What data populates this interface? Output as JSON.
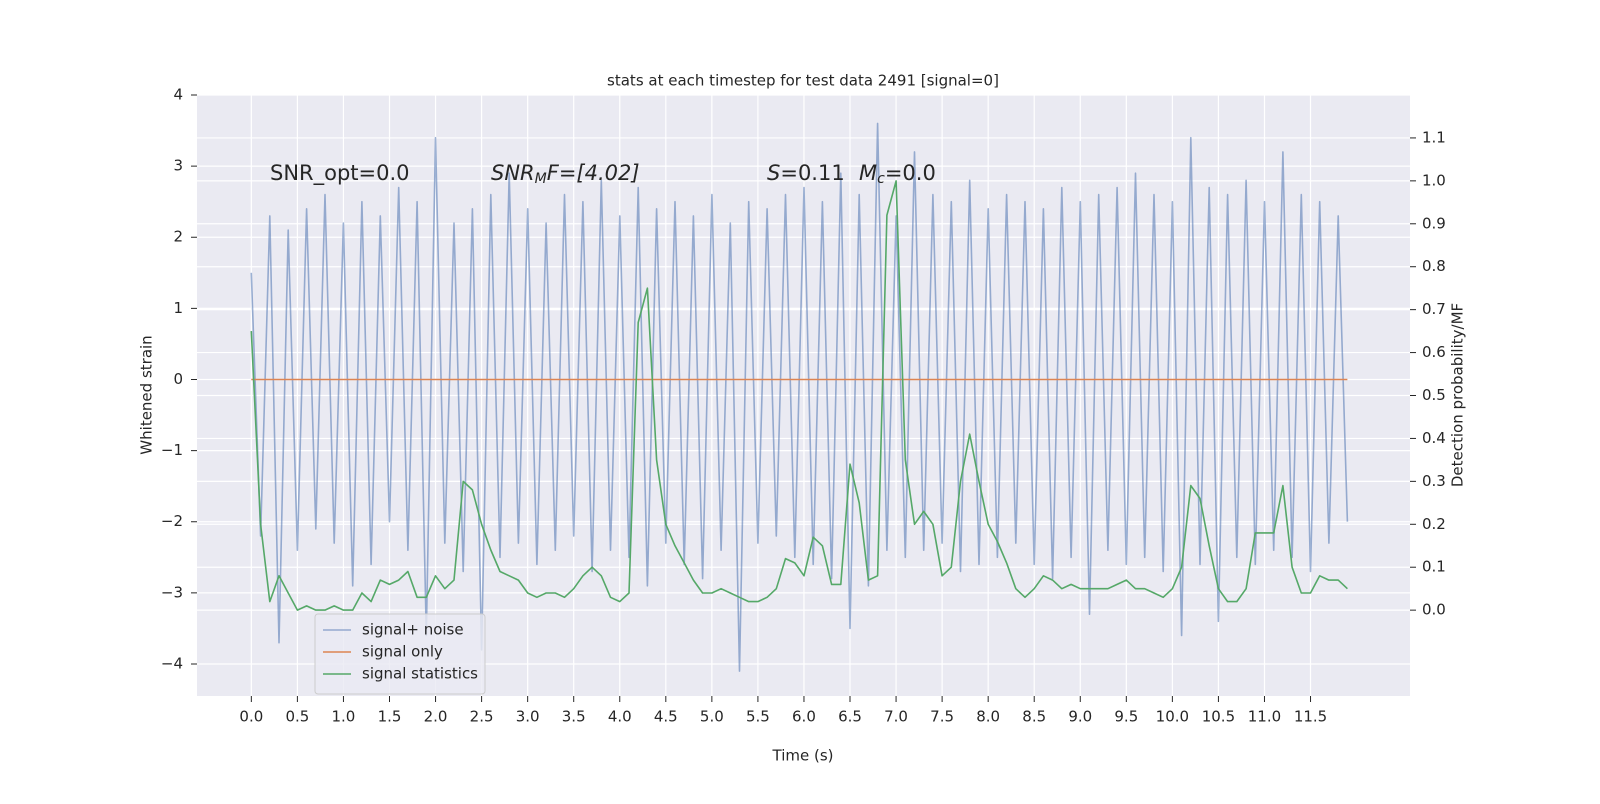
{
  "chart_data": {
    "type": "line",
    "title": "stats at each timestep for test data 2491 [signal=0]",
    "xlabel": "Time (s)",
    "ylabel": "Whitened strain",
    "y2label": "Detection probability/MF",
    "annotations": [
      {
        "text": "SNR_opt=0.0"
      },
      {
        "text": "SNR",
        "sub": "M",
        "rest": "F=[4.02]"
      },
      {
        "text": "S",
        "rest": "=0.11"
      },
      {
        "text": "M",
        "sub": "c",
        "rest": "=0.0"
      }
    ],
    "x": [
      0.0,
      0.1,
      0.2,
      0.3,
      0.4,
      0.5,
      0.6,
      0.7,
      0.8,
      0.9,
      1.0,
      1.1,
      1.2,
      1.3,
      1.4,
      1.5,
      1.6,
      1.7,
      1.8,
      1.9,
      2.0,
      2.1,
      2.2,
      2.3,
      2.4,
      2.5,
      2.6,
      2.7,
      2.8,
      2.9,
      3.0,
      3.1,
      3.2,
      3.3,
      3.4,
      3.5,
      3.6,
      3.7,
      3.8,
      3.9,
      4.0,
      4.1,
      4.2,
      4.3,
      4.4,
      4.5,
      4.6,
      4.7,
      4.8,
      4.9,
      5.0,
      5.1,
      5.2,
      5.3,
      5.4,
      5.5,
      5.6,
      5.7,
      5.8,
      5.9,
      6.0,
      6.1,
      6.2,
      6.3,
      6.4,
      6.5,
      6.6,
      6.7,
      6.8,
      6.9,
      7.0,
      7.1,
      7.2,
      7.3,
      7.4,
      7.5,
      7.6,
      7.7,
      7.8,
      7.9,
      8.0,
      8.1,
      8.2,
      8.3,
      8.4,
      8.5,
      8.6,
      8.7,
      8.8,
      8.9,
      9.0,
      9.1,
      9.2,
      9.3,
      9.4,
      9.5,
      9.6,
      9.7,
      9.8,
      9.9,
      10.0,
      10.1,
      10.2,
      10.3,
      10.4,
      10.5,
      10.6,
      10.7,
      10.8,
      10.9,
      11.0,
      11.1,
      11.2,
      11.3,
      11.4,
      11.5,
      11.6,
      11.7,
      11.8,
      11.9
    ],
    "series": [
      {
        "name": "signal+ noise",
        "color": "#4c72b0",
        "values": [
          1.5,
          -2.2,
          2.3,
          -3.7,
          2.1,
          -2.4,
          2.4,
          -2.1,
          2.6,
          -2.3,
          2.2,
          -2.9,
          2.5,
          -2.6,
          2.3,
          -2.0,
          2.7,
          -2.4,
          2.5,
          -3.6,
          3.4,
          -2.3,
          2.2,
          -2.7,
          2.4,
          -3.8,
          2.6,
          -2.5,
          2.9,
          -2.3,
          2.4,
          -2.6,
          2.2,
          -2.4,
          2.6,
          -2.2,
          2.5,
          -2.7,
          2.8,
          -2.4,
          2.3,
          -2.5,
          2.7,
          -2.9,
          2.4,
          -2.3,
          2.5,
          -2.6,
          2.3,
          -2.8,
          2.6,
          -2.4,
          2.2,
          -4.1,
          2.5,
          -2.3,
          2.4,
          -2.2,
          2.6,
          -2.5,
          2.7,
          -2.6,
          2.5,
          -2.8,
          2.9,
          -3.5,
          2.6,
          -2.9,
          3.6,
          -2.4,
          2.3,
          -2.5,
          3.2,
          -2.4,
          2.6,
          -2.3,
          2.5,
          -2.7,
          2.8,
          -2.6,
          2.4,
          -2.5,
          2.6,
          -2.3,
          2.5,
          -2.6,
          2.4,
          -2.8,
          2.7,
          -2.5,
          2.5,
          -3.3,
          2.6,
          -2.4,
          2.7,
          -2.6,
          2.9,
          -2.5,
          2.6,
          -2.7,
          2.5,
          -3.6,
          3.4,
          -2.6,
          2.7,
          -3.4,
          2.6,
          -2.5,
          2.8,
          -2.6,
          2.5,
          -2.4,
          3.2,
          -2.5,
          2.6,
          -2.7,
          2.5,
          -2.3,
          2.3,
          -2.0
        ]
      },
      {
        "name": "signal only",
        "color": "#dd8452",
        "x": [
          0.0,
          11.9
        ],
        "values": [
          0,
          0
        ]
      },
      {
        "name": "signal statistics",
        "color": "#55a868",
        "axis": "y2",
        "values": [
          0.65,
          0.2,
          0.02,
          0.08,
          0.04,
          0.0,
          0.01,
          0.0,
          0.0,
          0.01,
          0.0,
          0.0,
          0.04,
          0.02,
          0.07,
          0.06,
          0.07,
          0.09,
          0.03,
          0.03,
          0.08,
          0.05,
          0.07,
          0.3,
          0.28,
          0.2,
          0.14,
          0.09,
          0.08,
          0.07,
          0.04,
          0.03,
          0.04,
          0.04,
          0.03,
          0.05,
          0.08,
          0.1,
          0.08,
          0.03,
          0.02,
          0.04,
          0.67,
          0.75,
          0.35,
          0.2,
          0.15,
          0.11,
          0.07,
          0.04,
          0.04,
          0.05,
          0.04,
          0.03,
          0.02,
          0.02,
          0.03,
          0.05,
          0.12,
          0.11,
          0.08,
          0.17,
          0.15,
          0.06,
          0.06,
          0.34,
          0.25,
          0.07,
          0.08,
          0.92,
          1.0,
          0.35,
          0.2,
          0.23,
          0.2,
          0.08,
          0.1,
          0.3,
          0.41,
          0.3,
          0.2,
          0.16,
          0.11,
          0.05,
          0.03,
          0.05,
          0.08,
          0.07,
          0.05,
          0.06,
          0.05,
          0.05,
          0.05,
          0.05,
          0.06,
          0.07,
          0.05,
          0.05,
          0.04,
          0.03,
          0.05,
          0.1,
          0.29,
          0.26,
          0.15,
          0.05,
          0.02,
          0.02,
          0.05,
          0.18,
          0.18,
          0.18,
          0.29,
          0.1,
          0.04,
          0.04,
          0.08,
          0.07,
          0.07,
          0.05
        ]
      }
    ],
    "xlim": [
      -0.59,
      12.58
    ],
    "xticks": [
      {
        "value": 0,
        "label": "0.0"
      },
      0.5,
      {
        "value": 1,
        "label": "1.0"
      },
      1.5,
      {
        "value": 2,
        "label": "2.0"
      },
      2.5,
      {
        "value": 3,
        "label": "3.0"
      },
      3.5,
      {
        "value": 4,
        "label": "4.0"
      },
      4.5,
      {
        "value": 5,
        "label": "5.0"
      },
      5.5,
      {
        "value": 6,
        "label": "6.0"
      },
      6.5,
      {
        "value": 7,
        "label": "7.0"
      },
      7.5,
      {
        "value": 8,
        "label": "8.0"
      },
      8.5,
      {
        "value": 9,
        "label": "9.0"
      },
      9.5,
      {
        "value": 10,
        "label": "10.0"
      },
      10.5,
      {
        "value": 11,
        "label": "11.0"
      },
      11.5
    ],
    "ylim": [
      -4.45,
      4.0
    ],
    "yticks": [
      {
        "value": -4,
        "label": "−4"
      },
      {
        "value": -3,
        "label": "−3"
      },
      {
        "value": -2,
        "label": "−2"
      },
      {
        "value": -1,
        "label": "−1"
      },
      0,
      1,
      2,
      3,
      4
    ],
    "y2lim": [
      -0.2,
      1.2
    ],
    "y2ticks": [
      {
        "value": 0,
        "label": "0.0"
      },
      0.1,
      0.2,
      0.3,
      0.4,
      0.5,
      0.6,
      0.7,
      0.8,
      0.9,
      {
        "value": 1,
        "label": "1.0"
      },
      1.1
    ],
    "grid": true,
    "legend": "lower left"
  }
}
